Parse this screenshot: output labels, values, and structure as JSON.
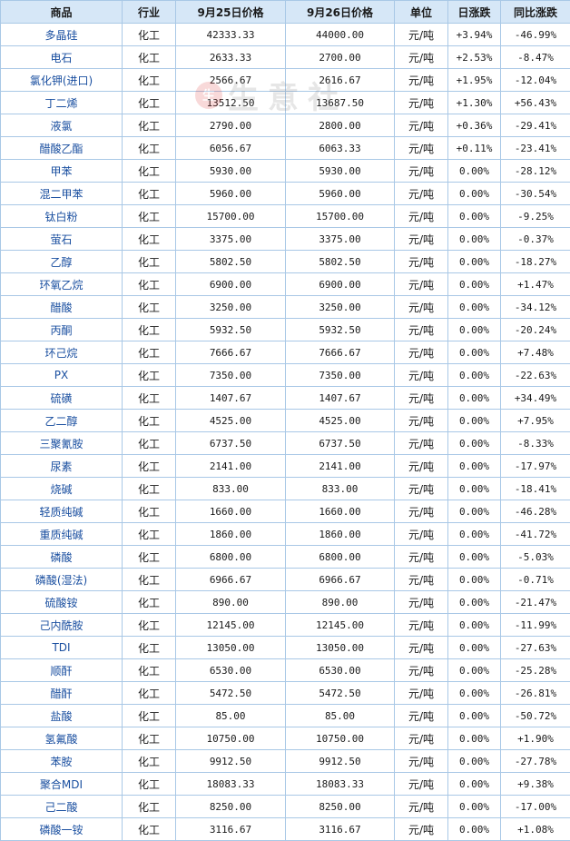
{
  "table": {
    "headers": [
      "商品",
      "行业",
      "9月25日价格",
      "9月26日价格",
      "单位",
      "日涨跌",
      "同比涨跌"
    ],
    "rows": [
      [
        "多晶硅",
        "化工",
        "42333.33",
        "44000.00",
        "元/吨",
        "+3.94%",
        "-46.99%"
      ],
      [
        "电石",
        "化工",
        "2633.33",
        "2700.00",
        "元/吨",
        "+2.53%",
        "-8.47%"
      ],
      [
        "氯化钾(进口)",
        "化工",
        "2566.67",
        "2616.67",
        "元/吨",
        "+1.95%",
        "-12.04%"
      ],
      [
        "丁二烯",
        "化工",
        "13512.50",
        "13687.50",
        "元/吨",
        "+1.30%",
        "+56.43%"
      ],
      [
        "液氯",
        "化工",
        "2790.00",
        "2800.00",
        "元/吨",
        "+0.36%",
        "-29.41%"
      ],
      [
        "醋酸乙酯",
        "化工",
        "6056.67",
        "6063.33",
        "元/吨",
        "+0.11%",
        "-23.41%"
      ],
      [
        "甲苯",
        "化工",
        "5930.00",
        "5930.00",
        "元/吨",
        "0.00%",
        "-28.12%"
      ],
      [
        "混二甲苯",
        "化工",
        "5960.00",
        "5960.00",
        "元/吨",
        "0.00%",
        "-30.54%"
      ],
      [
        "钛白粉",
        "化工",
        "15700.00",
        "15700.00",
        "元/吨",
        "0.00%",
        "-9.25%"
      ],
      [
        "萤石",
        "化工",
        "3375.00",
        "3375.00",
        "元/吨",
        "0.00%",
        "-0.37%"
      ],
      [
        "乙醇",
        "化工",
        "5802.50",
        "5802.50",
        "元/吨",
        "0.00%",
        "-18.27%"
      ],
      [
        "环氧乙烷",
        "化工",
        "6900.00",
        "6900.00",
        "元/吨",
        "0.00%",
        "+1.47%"
      ],
      [
        "醋酸",
        "化工",
        "3250.00",
        "3250.00",
        "元/吨",
        "0.00%",
        "-34.12%"
      ],
      [
        "丙酮",
        "化工",
        "5932.50",
        "5932.50",
        "元/吨",
        "0.00%",
        "-20.24%"
      ],
      [
        "环己烷",
        "化工",
        "7666.67",
        "7666.67",
        "元/吨",
        "0.00%",
        "+7.48%"
      ],
      [
        "PX",
        "化工",
        "7350.00",
        "7350.00",
        "元/吨",
        "0.00%",
        "-22.63%"
      ],
      [
        "硫磺",
        "化工",
        "1407.67",
        "1407.67",
        "元/吨",
        "0.00%",
        "+34.49%"
      ],
      [
        "乙二醇",
        "化工",
        "4525.00",
        "4525.00",
        "元/吨",
        "0.00%",
        "+7.95%"
      ],
      [
        "三聚氰胺",
        "化工",
        "6737.50",
        "6737.50",
        "元/吨",
        "0.00%",
        "-8.33%"
      ],
      [
        "尿素",
        "化工",
        "2141.00",
        "2141.00",
        "元/吨",
        "0.00%",
        "-17.97%"
      ],
      [
        "烧碱",
        "化工",
        "833.00",
        "833.00",
        "元/吨",
        "0.00%",
        "-18.41%"
      ],
      [
        "轻质纯碱",
        "化工",
        "1660.00",
        "1660.00",
        "元/吨",
        "0.00%",
        "-46.28%"
      ],
      [
        "重质纯碱",
        "化工",
        "1860.00",
        "1860.00",
        "元/吨",
        "0.00%",
        "-41.72%"
      ],
      [
        "磷酸",
        "化工",
        "6800.00",
        "6800.00",
        "元/吨",
        "0.00%",
        "-5.03%"
      ],
      [
        "磷酸(湿法)",
        "化工",
        "6966.67",
        "6966.67",
        "元/吨",
        "0.00%",
        "-0.71%"
      ],
      [
        "硫酸铵",
        "化工",
        "890.00",
        "890.00",
        "元/吨",
        "0.00%",
        "-21.47%"
      ],
      [
        "己内酰胺",
        "化工",
        "12145.00",
        "12145.00",
        "元/吨",
        "0.00%",
        "-11.99%"
      ],
      [
        "TDI",
        "化工",
        "13050.00",
        "13050.00",
        "元/吨",
        "0.00%",
        "-27.63%"
      ],
      [
        "顺酐",
        "化工",
        "6530.00",
        "6530.00",
        "元/吨",
        "0.00%",
        "-25.28%"
      ],
      [
        "醋酐",
        "化工",
        "5472.50",
        "5472.50",
        "元/吨",
        "0.00%",
        "-26.81%"
      ],
      [
        "盐酸",
        "化工",
        "85.00",
        "85.00",
        "元/吨",
        "0.00%",
        "-50.72%"
      ],
      [
        "氢氟酸",
        "化工",
        "10750.00",
        "10750.00",
        "元/吨",
        "0.00%",
        "+1.90%"
      ],
      [
        "苯胺",
        "化工",
        "9912.50",
        "9912.50",
        "元/吨",
        "0.00%",
        "-27.78%"
      ],
      [
        "聚合MDI",
        "化工",
        "18083.33",
        "18083.33",
        "元/吨",
        "0.00%",
        "+9.38%"
      ],
      [
        "己二酸",
        "化工",
        "8250.00",
        "8250.00",
        "元/吨",
        "0.00%",
        "-17.00%"
      ],
      [
        "磷酸一铵",
        "化工",
        "3116.67",
        "3116.67",
        "元/吨",
        "0.00%",
        "+1.08%"
      ]
    ]
  },
  "watermark": {
    "logo": "生",
    "text": "生意社",
    "url": "100ppi.com"
  },
  "colors": {
    "up": "#e60000",
    "down": "#009900",
    "header_bg": "#d6e7f7",
    "border": "#a9c8e6",
    "name_text": "#1a4fa0"
  }
}
